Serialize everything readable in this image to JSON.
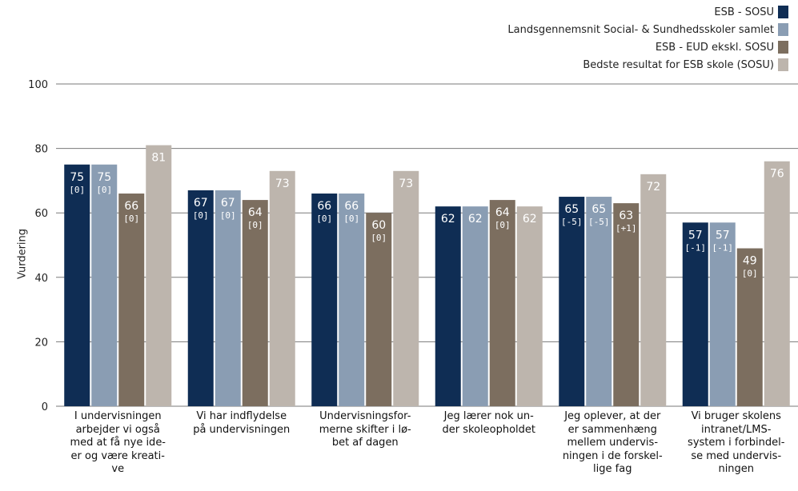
{
  "chart_data": {
    "type": "bar",
    "ylabel": "Vurdering",
    "ylim": [
      0,
      100
    ],
    "yticks": [
      "0",
      "20",
      "40",
      "60",
      "80",
      "100"
    ],
    "legend_position": "top-right",
    "categories": [
      "I undervisningen arbejder vi også med at få nye ide-er og være kreati-ve",
      "Vi har indflydelse på undervisningen",
      "Undervisningsfor-merne skifter i lø-bet af dagen",
      "Jeg lærer nok un-der skoleopholdet",
      "Jeg oplever, at der er sammenhæng mellem undervis-ningen i de forskel-lige fag",
      "Vi bruger skolens intranet/LMS-system  i forbindel-se med undervis-ningen"
    ],
    "category_lines": [
      [
        "I undervisningen",
        "arbejder vi også",
        "med at få nye ide-",
        "er og være kreati-",
        "ve"
      ],
      [
        "Vi har indflydelse",
        "på undervisningen"
      ],
      [
        "Undervisningsfor-",
        "merne skifter i lø-",
        "bet af dagen"
      ],
      [
        "Jeg lærer nok un-",
        "der skoleopholdet"
      ],
      [
        "Jeg oplever, at der",
        "er sammenhæng",
        "mellem undervis-",
        "ningen i de forskel-",
        "lige fag"
      ],
      [
        "Vi bruger skolens",
        "intranet/LMS-",
        "system  i forbindel-",
        "se med undervis-",
        "ningen"
      ]
    ],
    "series": [
      {
        "name": "ESB - SOSU",
        "color": "#0f2d54",
        "values": [
          75,
          67,
          66,
          62,
          65,
          57
        ],
        "labels": [
          "75",
          "67",
          "66",
          "62",
          "65",
          "57"
        ],
        "changes": [
          "[0]",
          "[0]",
          "[0]",
          "",
          "[-5]",
          "[-1]"
        ]
      },
      {
        "name": "Landsgennemsnit Social- & Sundhedsskoler samlet",
        "color": "#8a9db3",
        "values": [
          75,
          67,
          66,
          62,
          65,
          57
        ],
        "labels": [
          "75",
          "67",
          "66",
          "62",
          "65",
          "57"
        ],
        "changes": [
          "[0]",
          "[0]",
          "[0]",
          "",
          "[-5]",
          "[-1]"
        ]
      },
      {
        "name": "ESB - EUD ekskl. SOSU",
        "color": "#7c6e5f",
        "values": [
          66,
          64,
          60,
          64,
          63,
          49
        ],
        "labels": [
          "66",
          "64",
          "60",
          "64",
          "63",
          "49"
        ],
        "changes": [
          "[0]",
          "[0]",
          "[0]",
          "[0]",
          "[+1]",
          "[0]"
        ]
      },
      {
        "name": "Bedste resultat for ESB skole (SOSU)",
        "color": "#bdb5ad",
        "values": [
          81,
          73,
          73,
          62,
          72,
          76
        ],
        "labels": [
          "81",
          "73",
          "73",
          "62",
          "72",
          "76"
        ],
        "changes": [
          "",
          "",
          "",
          "",
          "",
          ""
        ]
      }
    ]
  }
}
